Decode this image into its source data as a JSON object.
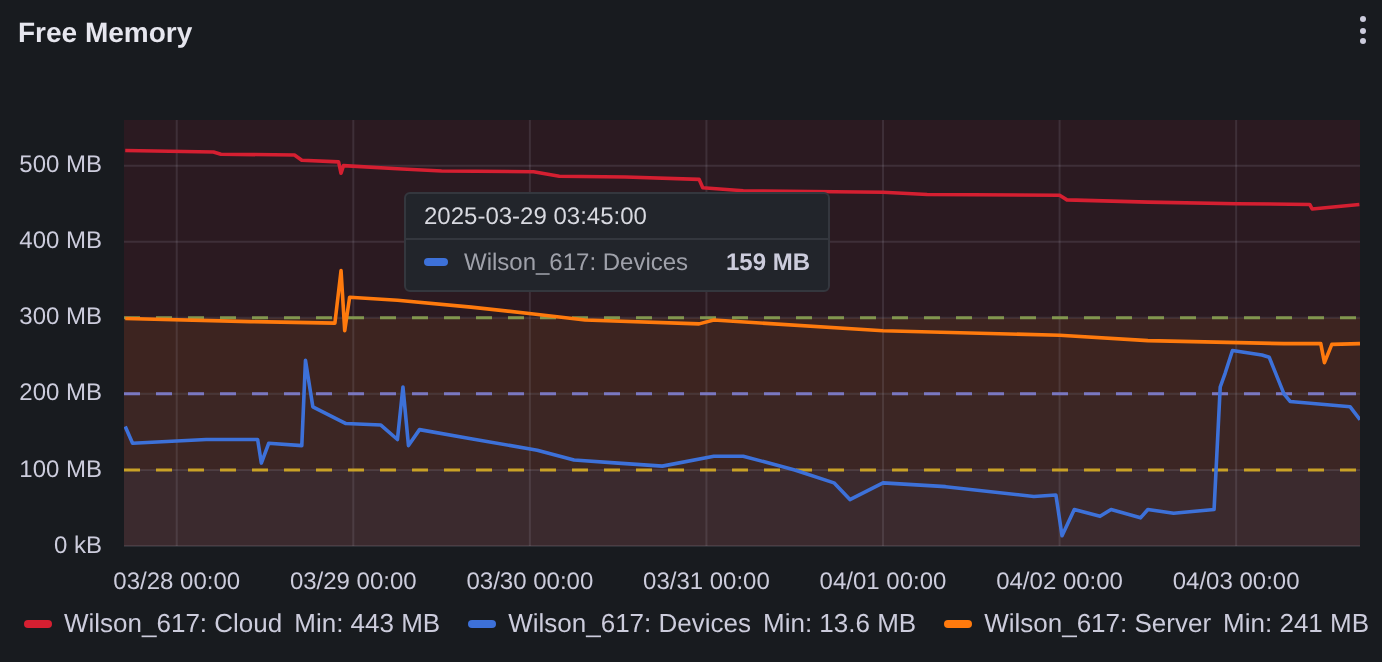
{
  "chart_data": {
    "type": "line",
    "title": "Free Memory",
    "xlim": [
      "2025-03-27T16:50",
      "2025-04-03T16:50"
    ],
    "xticks": [
      {
        "value": "2025-03-28T00:00",
        "label": "03/28 00:00"
      },
      {
        "value": "2025-03-29T00:00",
        "label": "03/29 00:00"
      },
      {
        "value": "2025-03-30T00:00",
        "label": "03/30 00:00"
      },
      {
        "value": "2025-03-31T00:00",
        "label": "03/31 00:00"
      },
      {
        "value": "2025-04-01T00:00",
        "label": "04/01 00:00"
      },
      {
        "value": "2025-04-02T00:00",
        "label": "04/02 00:00"
      },
      {
        "value": "2025-04-03T00:00",
        "label": "04/03 00:00"
      }
    ],
    "ylim": [
      0,
      560
    ],
    "yticks": [
      {
        "value": 0,
        "label": "0 kB"
      },
      {
        "value": 100,
        "label": "100 MB"
      },
      {
        "value": 200,
        "label": "200 MB"
      },
      {
        "value": 300,
        "label": "300 MB"
      },
      {
        "value": 400,
        "label": "400 MB"
      },
      {
        "value": 500,
        "label": "500 MB"
      }
    ],
    "grid": true,
    "legend": "bottom",
    "marker": "none",
    "line_style": "solid",
    "series": [
      {
        "name": "Wilson_617: Cloud",
        "color": "#d51f31",
        "x": [
          "2025-03-27T17:00",
          "2025-03-28T05:00",
          "2025-03-28T06:00",
          "2025-03-28T16:00",
          "2025-03-28T17:00",
          "2025-03-28T22:00",
          "2025-03-28T22:20",
          "2025-03-28T22:40",
          "2025-03-29T06:00",
          "2025-03-29T12:00",
          "2025-03-30T00:30",
          "2025-03-30T04:00",
          "2025-03-30T13:00",
          "2025-03-30T23:00",
          "2025-03-30T23:30",
          "2025-03-31T05:00",
          "2025-04-01T00:00",
          "2025-04-01T06:00",
          "2025-04-02T00:00",
          "2025-04-02T01:00",
          "2025-04-02T12:00",
          "2025-04-03T00:00",
          "2025-04-03T10:00",
          "2025-04-03T10:20",
          "2025-04-03T16:45"
        ],
        "values": [
          520,
          518,
          515,
          514,
          507,
          505,
          490,
          500,
          496,
          493,
          492,
          486,
          485,
          482,
          471,
          467,
          465,
          462,
          461,
          455,
          452,
          450,
          449,
          443,
          449
        ]
      },
      {
        "name": "Wilson_617: Devices",
        "color": "#3d71d9",
        "x": [
          "2025-03-27T17:00",
          "2025-03-27T18:00",
          "2025-03-28T04:00",
          "2025-03-28T11:00",
          "2025-03-28T11:30",
          "2025-03-28T12:30",
          "2025-03-28T17:00",
          "2025-03-28T17:30",
          "2025-03-28T18:30",
          "2025-03-28T23:00",
          "2025-03-29T03:45",
          "2025-03-29T06:00",
          "2025-03-29T06:45",
          "2025-03-29T07:30",
          "2025-03-29T09:00",
          "2025-03-29T16:00",
          "2025-03-30T01:00",
          "2025-03-30T06:00",
          "2025-03-30T12:00",
          "2025-03-30T18:00",
          "2025-03-31T01:00",
          "2025-03-31T05:00",
          "2025-03-31T12:00",
          "2025-03-31T17:20",
          "2025-03-31T19:30",
          "2025-04-01T00:00",
          "2025-04-01T08:30",
          "2025-04-01T20:30",
          "2025-04-01T23:30",
          "2025-04-02T00:20",
          "2025-04-02T02:00",
          "2025-04-02T05:30",
          "2025-04-02T07:00",
          "2025-04-02T11:00",
          "2025-04-02T12:00",
          "2025-04-02T15:30",
          "2025-04-02T21:00",
          "2025-04-02T21:50",
          "2025-04-02T22:30",
          "2025-04-02T23:30",
          "2025-04-03T03:30",
          "2025-04-03T04:30",
          "2025-04-03T06:30",
          "2025-04-03T07:20",
          "2025-04-03T15:30",
          "2025-04-03T16:50"
        ],
        "values": [
          157,
          135,
          140,
          140,
          109,
          135,
          132,
          244,
          183,
          161,
          159,
          140,
          209,
          132,
          153,
          141,
          126,
          113,
          109,
          105,
          118,
          118,
          100,
          83,
          61,
          83,
          78,
          65,
          67,
          13.6,
          48,
          39,
          48,
          37,
          48,
          43,
          48,
          209,
          227,
          257,
          251,
          248,
          200,
          190,
          183,
          166
        ]
      },
      {
        "name": "Wilson_617: Server",
        "color": "#ff7a0d",
        "x": [
          "2025-03-27T17:00",
          "2025-03-28T10:00",
          "2025-03-28T21:30",
          "2025-03-28T22:20",
          "2025-03-28T22:50",
          "2025-03-28T23:30",
          "2025-03-29T06:00",
          "2025-03-29T16:00",
          "2025-03-30T00:30",
          "2025-03-30T07:30",
          "2025-03-30T23:00",
          "2025-03-31T01:00",
          "2025-04-01T00:00",
          "2025-04-02T00:00",
          "2025-04-02T12:00",
          "2025-04-03T06:30",
          "2025-04-03T11:30",
          "2025-04-03T12:00",
          "2025-04-03T13:00",
          "2025-04-03T16:50"
        ],
        "values": [
          299,
          295,
          293,
          362,
          283,
          327,
          323,
          314,
          305,
          297,
          292,
          297,
          283,
          277,
          270,
          266,
          266,
          241,
          265,
          266
        ]
      }
    ],
    "ref_lines": [
      {
        "axis": "y",
        "value": 100,
        "color": "#c9a227",
        "line_style": "dashed"
      },
      {
        "axis": "y",
        "value": 200,
        "color": "#7a78c2",
        "line_style": "dashed"
      },
      {
        "axis": "y",
        "value": 300,
        "color": "#82974f",
        "line_style": "dashed"
      }
    ],
    "bands": [
      {
        "axis": "y",
        "from": 0,
        "to": 100,
        "color": "#3b2a2e"
      },
      {
        "axis": "y",
        "from": 100,
        "to": 200,
        "color": "#3c2624"
      },
      {
        "axis": "y",
        "from": 200,
        "to": 300,
        "color": "#3d2420"
      },
      {
        "axis": "y",
        "from": 300,
        "to": 560,
        "color": "#2b1a21"
      }
    ],
    "annotations": [
      "2025-03-29 03:45:00",
      "Wilson_617: Devices",
      "159 MB",
      "Min: 443 MB",
      "Min: 13.6 MB",
      "Min: 241 MB"
    ]
  }
}
